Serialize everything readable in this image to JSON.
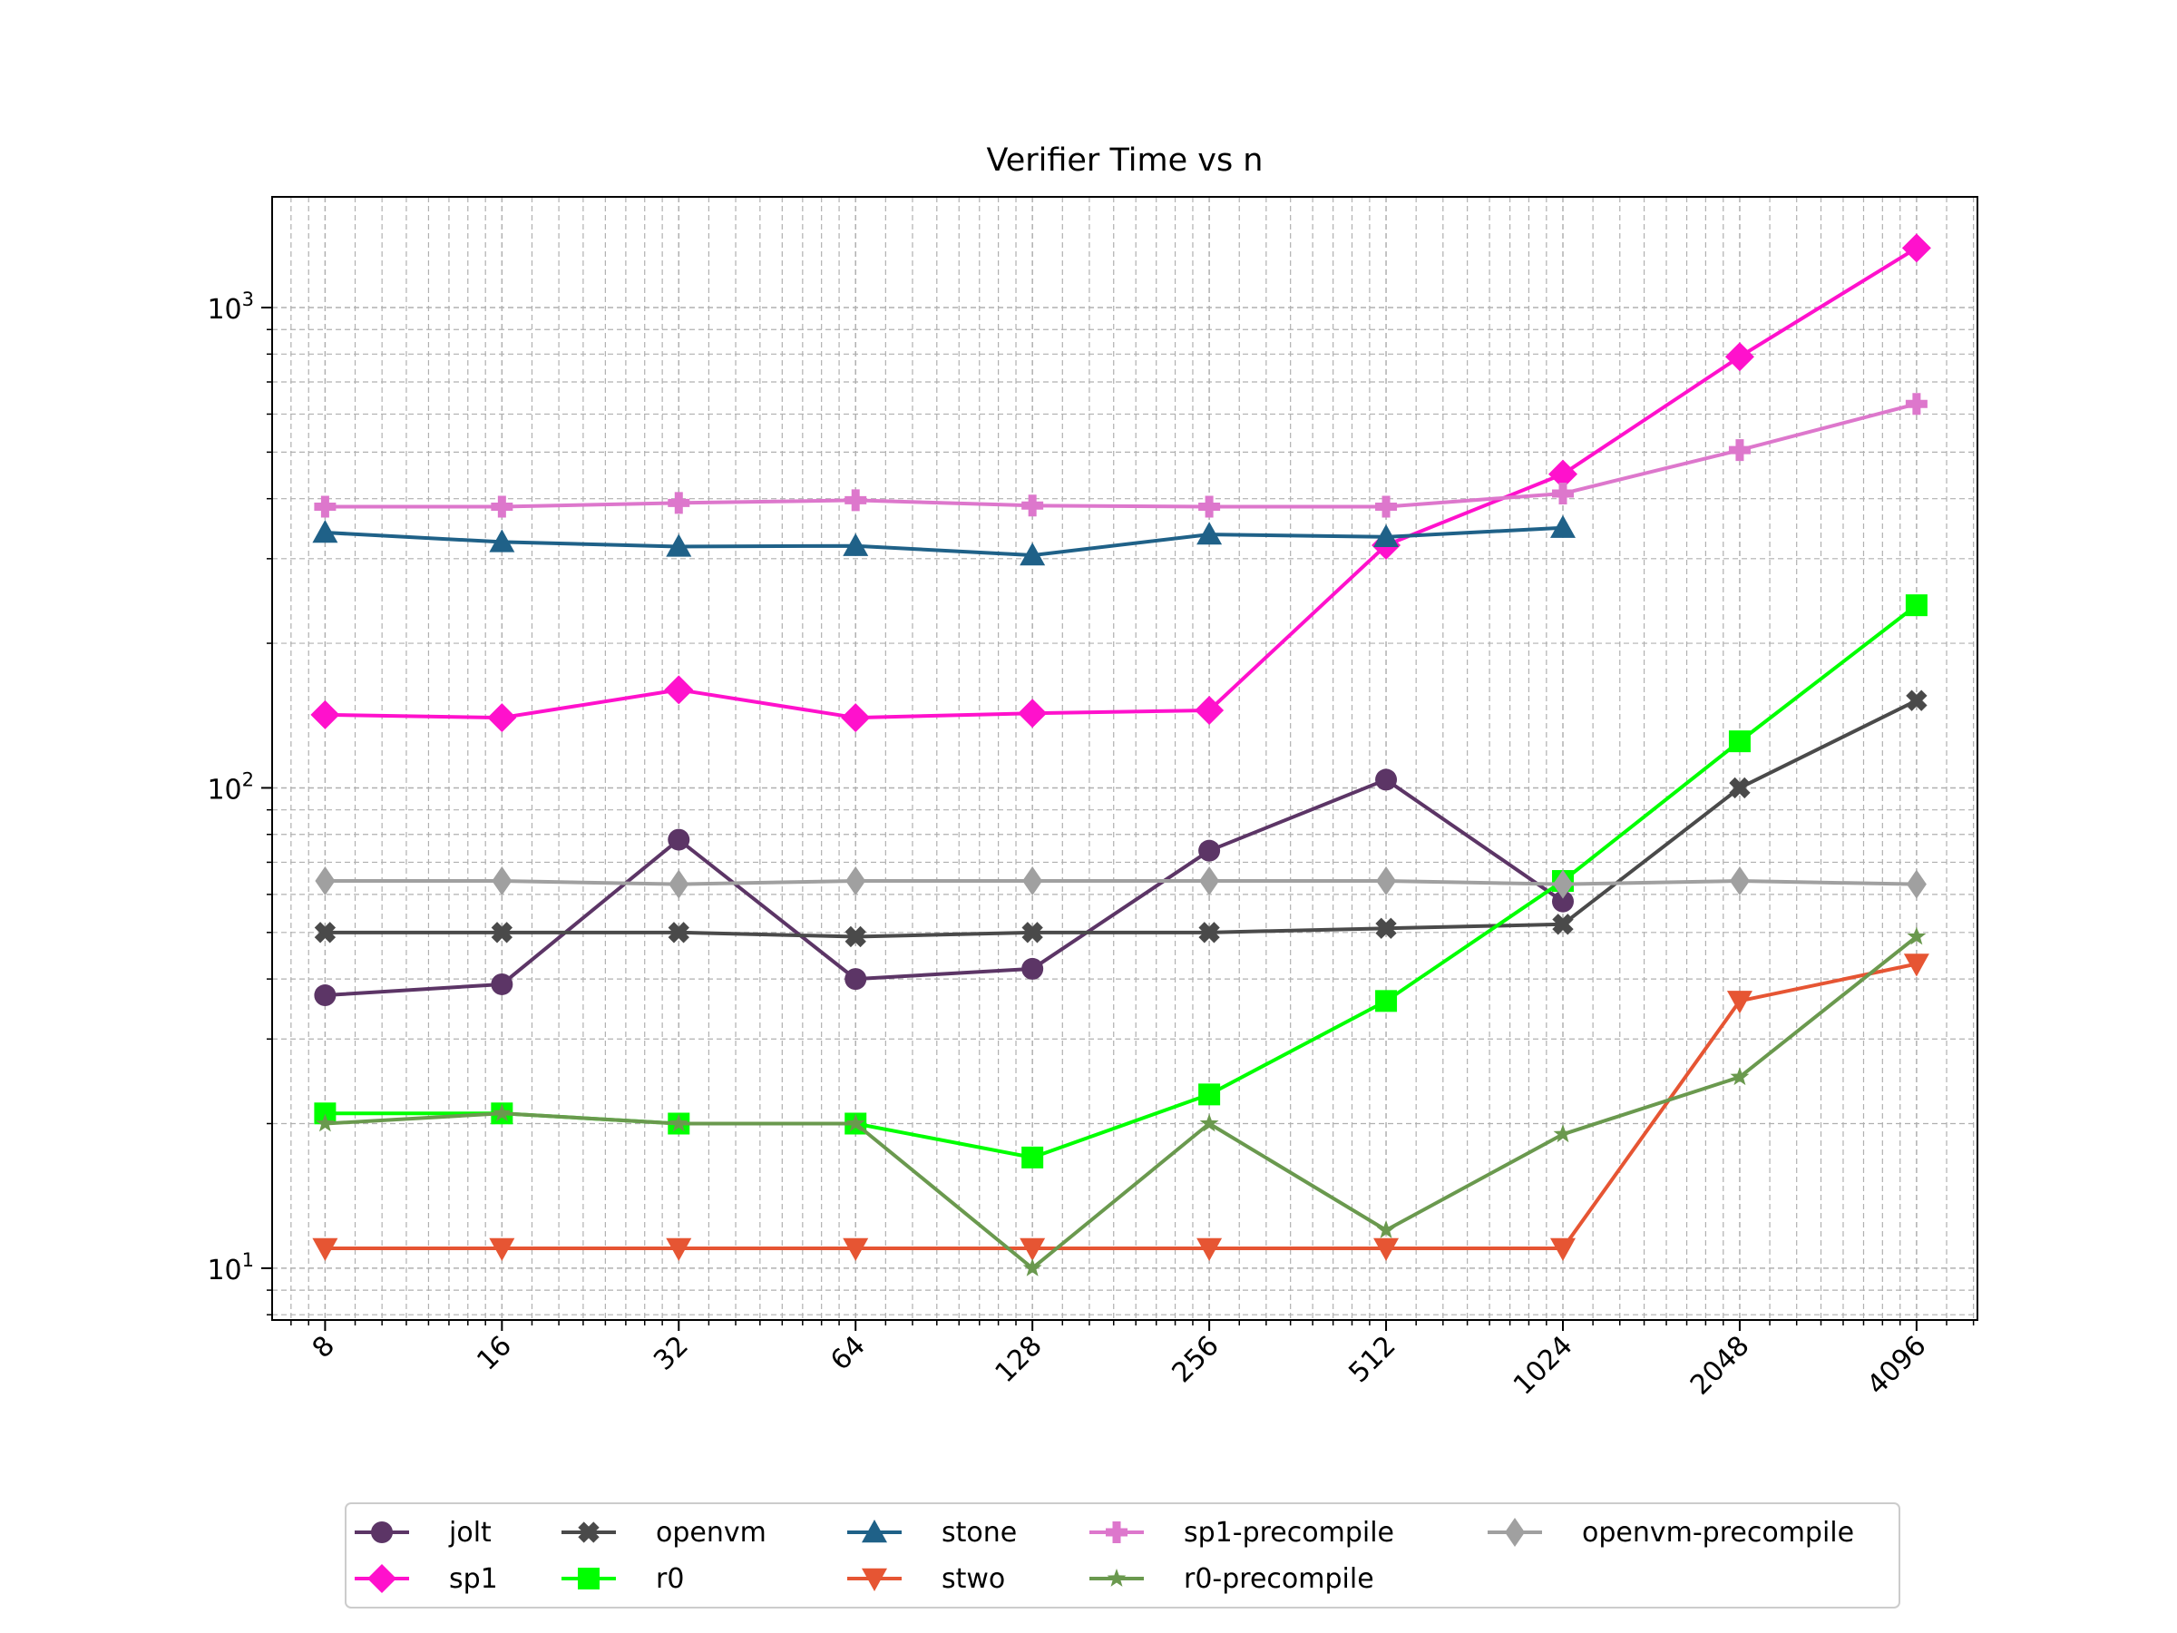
{
  "chart_data": {
    "type": "line",
    "title": "Verifier Time vs n",
    "xlabel": "",
    "ylabel": "",
    "x_scale": "log2",
    "y_scale": "log10",
    "x": [
      8,
      16,
      32,
      64,
      128,
      256,
      512,
      1024,
      2048,
      4096
    ],
    "x_tick_labels": [
      "8",
      "16",
      "32",
      "64",
      "128",
      "256",
      "512",
      "1024",
      "2048",
      "4096"
    ],
    "y_tick_labels": [
      {
        "base": "10",
        "exp": "1"
      },
      {
        "base": "10",
        "exp": "2"
      },
      {
        "base": "10",
        "exp": "3"
      }
    ],
    "xlim": [
      6.5,
      5200
    ],
    "ylim": [
      7.8,
      1700
    ],
    "grid": true,
    "legend_location": "below plot, 5 columns",
    "series": [
      {
        "name": "jolt",
        "color": "#5c3566",
        "marker": "circle",
        "values": [
          37,
          39,
          78,
          40,
          42,
          74,
          104,
          58,
          null,
          null
        ]
      },
      {
        "name": "sp1",
        "color": "#ff11cc",
        "marker": "diamond",
        "values": [
          142,
          140,
          160,
          140,
          143,
          145,
          320,
          450,
          790,
          1330
        ]
      },
      {
        "name": "openvm",
        "color": "#4a4a4a",
        "marker": "x",
        "values": [
          50,
          50,
          50,
          49,
          50,
          50,
          51,
          52,
          100,
          152
        ]
      },
      {
        "name": "r0",
        "color": "#00ff00",
        "marker": "square",
        "values": [
          21,
          21,
          20,
          20,
          17,
          23,
          36,
          64,
          125,
          240
        ]
      },
      {
        "name": "stone",
        "color": "#1f6188",
        "marker": "triangle-up",
        "values": [
          340,
          325,
          318,
          319,
          305,
          337,
          333,
          348,
          null,
          null
        ]
      },
      {
        "name": "stwo",
        "color": "#e65533",
        "marker": "triangle-down",
        "values": [
          11,
          11,
          11,
          11,
          11,
          11,
          11,
          11,
          36,
          43
        ]
      },
      {
        "name": "sp1-precompile",
        "color": "#dd77cc",
        "marker": "plus",
        "values": [
          385,
          385,
          392,
          397,
          387,
          385,
          385,
          410,
          505,
          630
        ]
      },
      {
        "name": "r0-precompile",
        "color": "#6a994e",
        "marker": "star",
        "values": [
          20,
          21,
          20,
          20,
          10,
          20,
          12,
          19,
          25,
          49
        ]
      },
      {
        "name": "openvm-precompile",
        "color": "#a0a0a0",
        "marker": "thin-diamond",
        "values": [
          64,
          64,
          63,
          64,
          64,
          64,
          64,
          63,
          64,
          63
        ]
      }
    ]
  }
}
